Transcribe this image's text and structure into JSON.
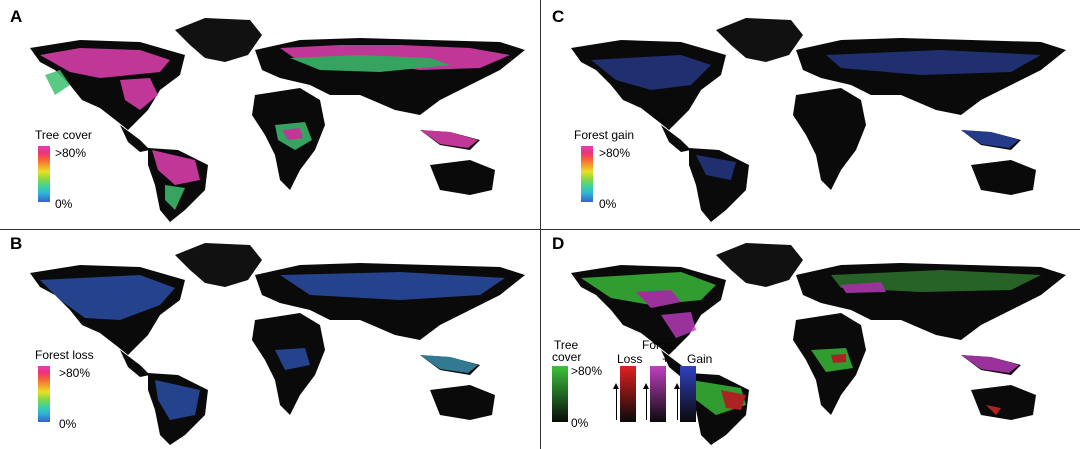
{
  "panels": {
    "a": {
      "letter": "A",
      "legend_title": "Tree cover",
      "top": ">80%",
      "bottom": "0%"
    },
    "b": {
      "letter": "B",
      "legend_title": "Forest loss",
      "top": ">80%",
      "bottom": "0%"
    },
    "c": {
      "letter": "C",
      "legend_title": "Forest gain",
      "top": ">80%",
      "bottom": "0%"
    },
    "d": {
      "letter": "D",
      "tree_cover_label_1": "Tree",
      "tree_cover_label_2": "cover",
      "top": ">80%",
      "bottom": "0%",
      "loss_label": "Loss",
      "forest_label": "Forest",
      "plus_label": "+",
      "gain_label": "Gain"
    }
  },
  "colors": {
    "land_dark": "#0a0a0a",
    "greenland": "#111111",
    "tree_cover_high": "#e040b0",
    "tree_cover_mid": "#3ec070",
    "loss": "#2f56b8",
    "gain": "#2a3f9a",
    "d_cover": "#3bc23b",
    "d_loss": "#d42a2a",
    "d_both": "#c03cc0"
  }
}
